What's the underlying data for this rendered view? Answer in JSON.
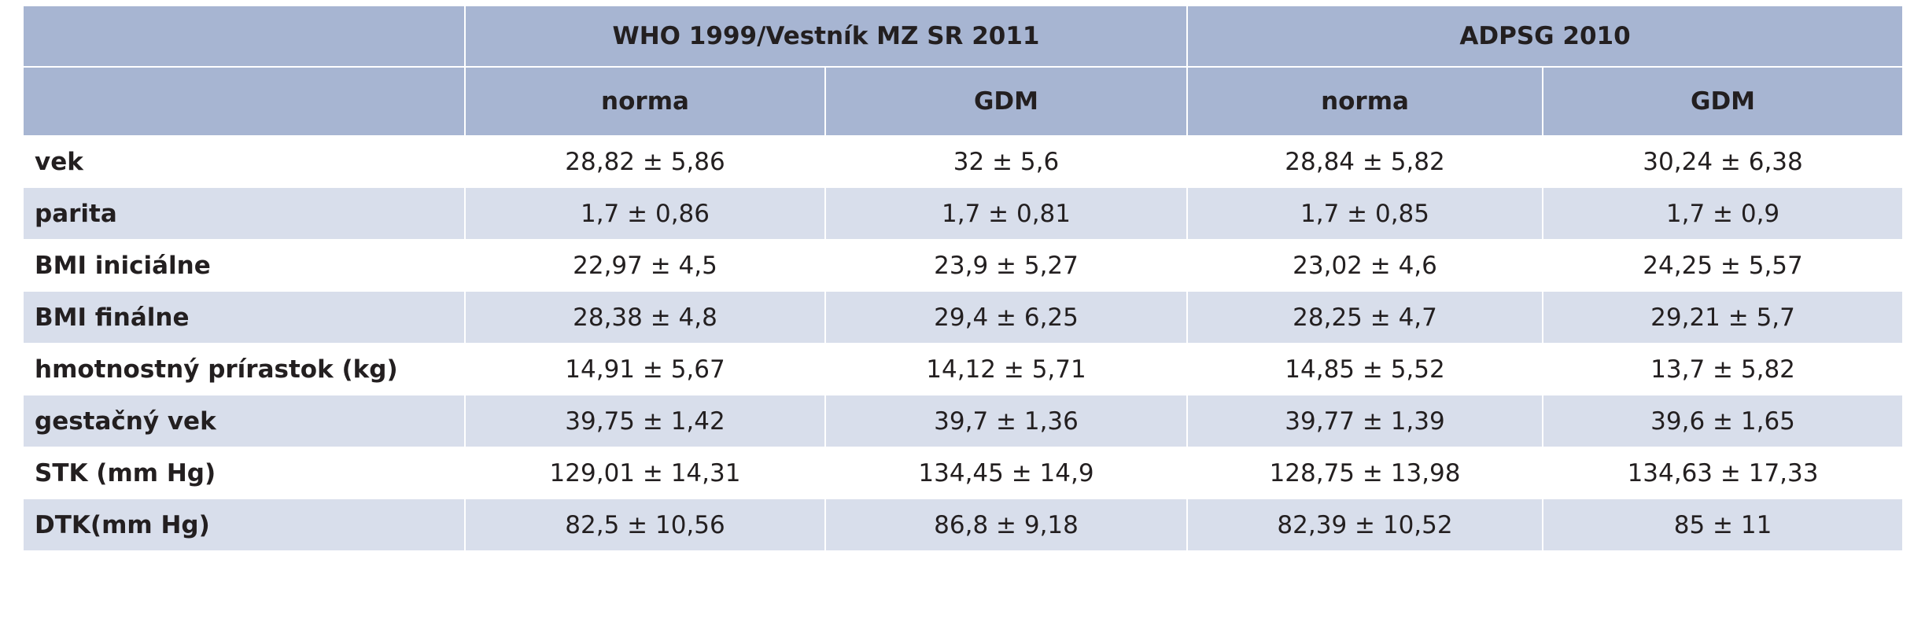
{
  "header": {
    "groups": [
      "WHO 1999/Vestník MZ SR 2011",
      "ADPSG 2010"
    ],
    "subcolumns": [
      "norma",
      "GDM",
      "norma",
      "GDM"
    ]
  },
  "table": {
    "rows": [
      [
        "vek",
        "28,82 ± 5,86",
        "32 ± 5,6",
        "28,84 ± 5,82",
        "30,24 ± 6,38"
      ],
      [
        "parita",
        "1,7 ± 0,86",
        "1,7 ± 0,81",
        "1,7 ± 0,85",
        "1,7 ± 0,9"
      ],
      [
        "BMI iniciálne",
        "22,97 ± 4,5",
        "23,9 ± 5,27",
        "23,02 ± 4,6",
        "24,25 ± 5,57"
      ],
      [
        "BMI finálne",
        "28,38 ± 4,8",
        "29,4 ± 6,25",
        "28,25 ± 4,7",
        "29,21 ± 5,7"
      ],
      [
        "hmotnostný prírastok (kg)",
        "14,91 ± 5,67",
        "14,12 ± 5,71",
        "14,85 ± 5,52",
        "13,7 ± 5,82"
      ],
      [
        "gestačný vek",
        "39,75 ± 1,42",
        "39,7 ± 1,36",
        "39,77 ± 1,39",
        "39,6 ± 1,65"
      ],
      [
        "STK (mm Hg)",
        "129,01 ± 14,31",
        "134,45 ± 14,9",
        "128,75 ± 13,98",
        "134,63 ± 17,33"
      ],
      [
        "DTK(mm Hg)",
        "82,5 ± 10,56",
        "86,8 ± 9,18",
        "82,39 ± 10,52",
        "85 ± 11"
      ]
    ]
  }
}
